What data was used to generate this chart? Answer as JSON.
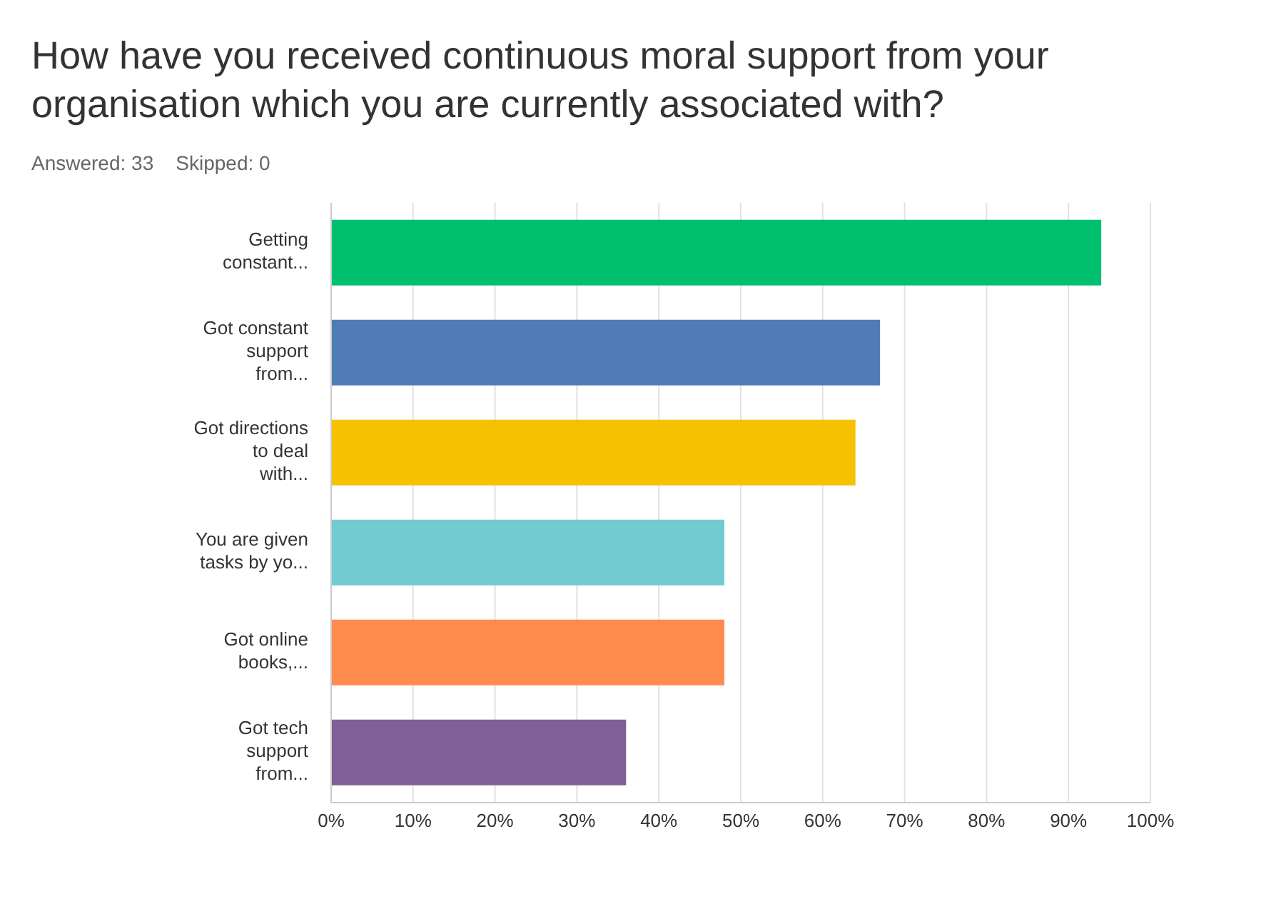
{
  "chart_data": {
    "type": "bar",
    "orientation": "horizontal",
    "title": "How have you received continuous moral support from your organisation which you are currently associated with?",
    "subtitle": "Answered: 33    Skipped: 0",
    "categories": [
      "Getting constant...",
      "Got constant support from...",
      "Got directions to deal with...",
      "You are given tasks by yo...",
      "Got online books,...",
      "Got tech support from..."
    ],
    "values": [
      94,
      67,
      64,
      48,
      48,
      36
    ],
    "colors": [
      "#00bf6f",
      "#507cb6",
      "#f6c101",
      "#71cbd1",
      "#ff8b4f",
      "#7f5f95"
    ],
    "xlim": [
      0,
      100
    ],
    "xticks": [
      {
        "value": 0,
        "label": "0%"
      },
      {
        "value": 10,
        "label": "10%"
      },
      {
        "value": 20,
        "label": "20%"
      },
      {
        "value": 30,
        "label": "30%"
      },
      {
        "value": 40,
        "label": "40%"
      },
      {
        "value": 50,
        "label": "50%"
      },
      {
        "value": 60,
        "label": "60%"
      },
      {
        "value": 70,
        "label": "70%"
      },
      {
        "value": 80,
        "label": "80%"
      },
      {
        "value": 90,
        "label": "90%"
      },
      {
        "value": 100,
        "label": "100%"
      }
    ],
    "grid": "x"
  }
}
